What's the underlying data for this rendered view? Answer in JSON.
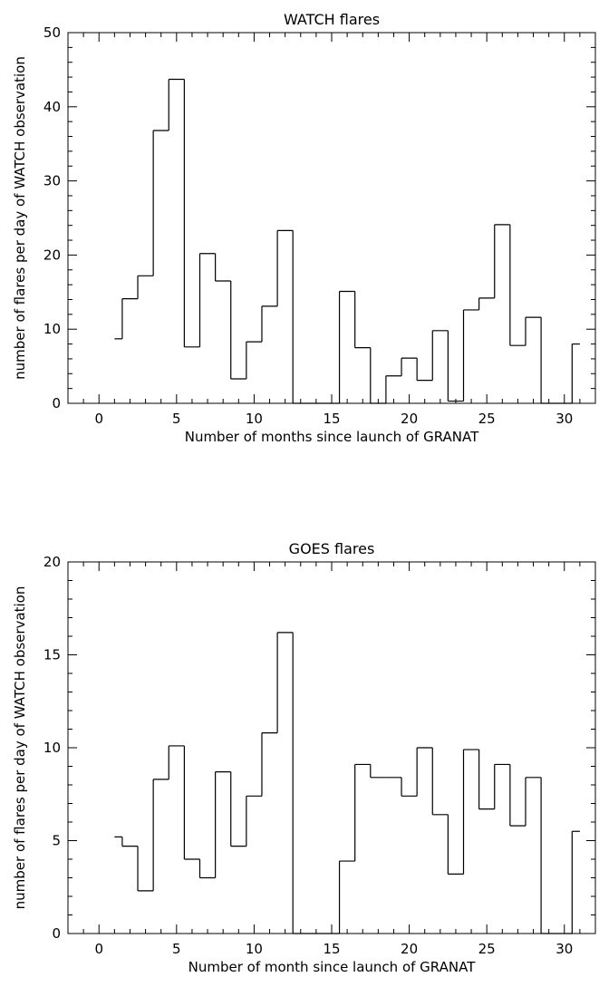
{
  "chart_data": [
    {
      "type": "bar",
      "style": "step histogram",
      "title": "WATCH flares",
      "xlabel": "Number of months since launch of GRANAT",
      "ylabel": "number of flares per day of WATCH observation",
      "xlim": [
        -2,
        32
      ],
      "ylim": [
        0,
        50
      ],
      "xticks": [
        0,
        5,
        10,
        15,
        20,
        25,
        30
      ],
      "yticks": [
        0,
        10,
        20,
        30,
        40,
        50
      ],
      "bin_edges": [
        1,
        1.5,
        2.5,
        3.5,
        4.5,
        5.5,
        6.5,
        7.5,
        8.5,
        9.5,
        10.5,
        11.5,
        12.5,
        13.5,
        14.5,
        15.5,
        16.5,
        17.5,
        18.5,
        19.5,
        20.5,
        21.5,
        22.5,
        23.5,
        24.5,
        25.5,
        26.5,
        27.5,
        28.5,
        29.5,
        30.5,
        31
      ],
      "values": [
        8.7,
        14.1,
        17.2,
        36.8,
        43.7,
        7.6,
        20.2,
        16.5,
        3.3,
        8.3,
        13.1,
        23.3,
        0,
        0,
        0,
        15.1,
        7.5,
        0,
        3.7,
        6.1,
        3.1,
        9.8,
        0.3,
        12.6,
        14.2,
        24.1,
        7.8,
        11.6,
        0,
        0,
        8.0
      ],
      "grid": false
    },
    {
      "type": "bar",
      "style": "step histogram",
      "title": "GOES flares",
      "xlabel": "Number of month since launch of GRANAT",
      "ylabel": "number of flares per day of WATCH observation",
      "xlim": [
        -2,
        32
      ],
      "ylim": [
        0,
        20
      ],
      "xticks": [
        0,
        5,
        10,
        15,
        20,
        25,
        30
      ],
      "yticks": [
        0,
        5,
        10,
        15,
        20
      ],
      "bin_edges": [
        1,
        1.5,
        2.5,
        3.5,
        4.5,
        5.5,
        6.5,
        7.5,
        8.5,
        9.5,
        10.5,
        11.5,
        12.5,
        13.5,
        14.5,
        15.5,
        16.5,
        17.5,
        18.5,
        19.5,
        20.5,
        21.5,
        22.5,
        23.5,
        24.5,
        25.5,
        26.5,
        27.5,
        28.5,
        29.5,
        30.5,
        31
      ],
      "values": [
        5.2,
        4.7,
        2.3,
        8.3,
        10.1,
        4.0,
        3.0,
        8.7,
        4.7,
        7.4,
        10.8,
        16.2,
        0,
        0,
        0,
        3.9,
        9.1,
        8.4,
        8.4,
        7.4,
        10.0,
        6.4,
        3.2,
        9.9,
        6.7,
        9.1,
        5.8,
        8.4,
        0,
        0,
        5.5
      ],
      "grid": false
    }
  ]
}
